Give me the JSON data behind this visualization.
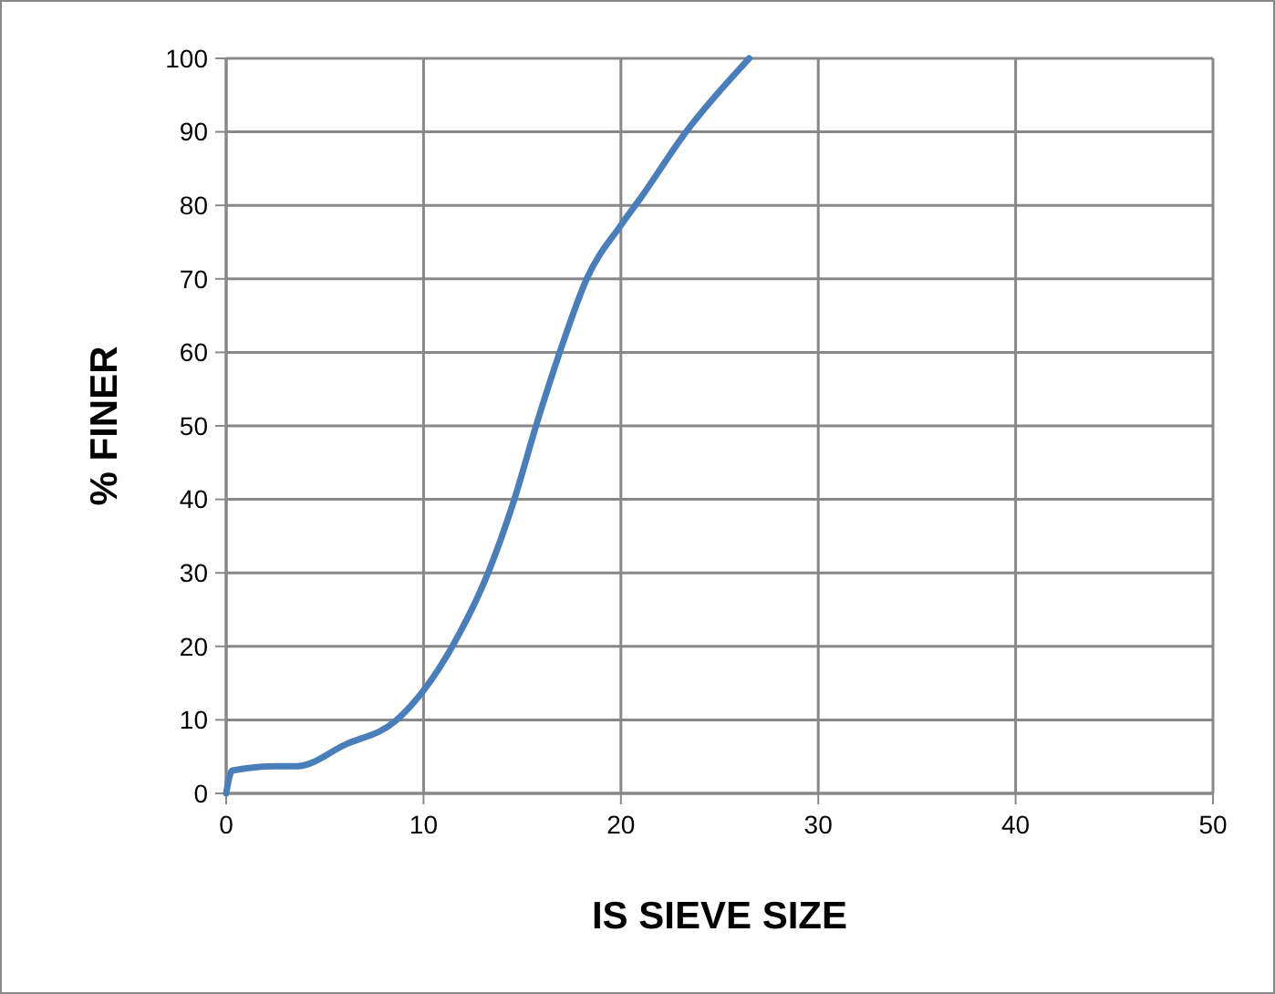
{
  "chart_data": {
    "type": "line",
    "xlabel": "IS SIEVE SIZE",
    "ylabel": "% FINER",
    "xlim": [
      0,
      50
    ],
    "xticks": [
      0,
      10,
      20,
      30,
      40,
      50
    ],
    "ylim": [
      0,
      100
    ],
    "yticks": [
      0,
      10,
      20,
      30,
      40,
      50,
      60,
      70,
      80,
      90,
      100
    ],
    "grid": true,
    "marker": "none",
    "line_style": "solid",
    "series": [
      {
        "color": "#4a7ebb",
        "x": [
          0,
          0.3,
          2.5,
          3.6,
          6,
          8.6,
          10,
          11.5,
          13.3,
          14.6,
          15.7,
          16.9,
          18.3,
          20,
          21,
          23.3,
          26.5
        ],
        "values": [
          0,
          3.1,
          3.7,
          3.7,
          6.6,
          9.9,
          14,
          20.2,
          30.2,
          40,
          50,
          60,
          70.2,
          77.3,
          81,
          90,
          100
        ]
      }
    ]
  }
}
